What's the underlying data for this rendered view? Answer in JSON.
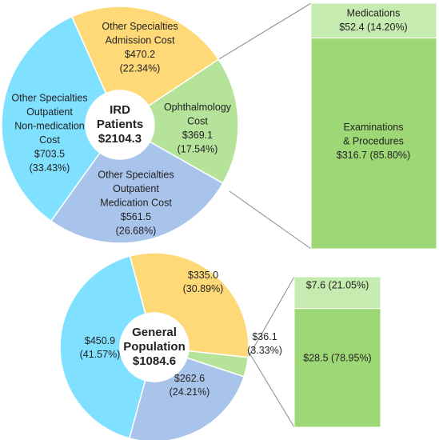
{
  "chart_data": [
    {
      "type": "pie",
      "center": {
        "line1": "IRD",
        "line2": "Patients",
        "total": "$2104.3"
      },
      "slices": [
        {
          "name": "Other Specialties Admission Cost",
          "value": 470.2,
          "percent": 22.34,
          "color": "#FFD978",
          "label_lines": [
            "Other Specialties",
            "Admission Cost",
            "$470.2",
            "(22.34%)"
          ]
        },
        {
          "name": "Ophthalmology Cost",
          "value": 369.1,
          "percent": 17.54,
          "color": "#B6E39A",
          "label_lines": [
            "Ophthalmology",
            "Cost",
            "$369.1",
            "(17.54%)"
          ]
        },
        {
          "name": "Other Specialties Outpatient Medication Cost",
          "value": 561.5,
          "percent": 26.68,
          "color": "#A9C4EB",
          "label_lines": [
            "Other Specialties",
            "Outpatient",
            "Medication Cost",
            "$561.5",
            "(26.68%)"
          ]
        },
        {
          "name": "Other Specialties Outpatient Non-medication Cost",
          "value": 703.5,
          "percent": 33.43,
          "color": "#80E0FF",
          "label_lines": [
            "Other Specialties",
            "Outpatient",
            "Non-medication",
            "Cost",
            "$703.5",
            "(33.43%)"
          ]
        }
      ],
      "breakdown": {
        "of": "Ophthalmology Cost",
        "segments": [
          {
            "name": "Medications",
            "value": 52.4,
            "percent": 14.2,
            "color": "#C5EBB0",
            "label_lines": [
              "Medications",
              "$52.4 (14.20%)"
            ]
          },
          {
            "name": "Examinations & Procedures",
            "value": 316.7,
            "percent": 85.8,
            "color": "#9ED876",
            "label_lines": [
              "Examinations",
              "& Procedures",
              "$316.7 (85.80%)"
            ]
          }
        ]
      }
    },
    {
      "type": "pie",
      "center": {
        "line1": "General",
        "line2": "Population",
        "total": "$1084.6"
      },
      "slices": [
        {
          "name": "Other Specialties Admission Cost",
          "value": 335.0,
          "percent": 30.89,
          "color": "#FFD978",
          "label_lines": [
            "$335.0",
            "(30.89%)"
          ]
        },
        {
          "name": "Ophthalmology Cost",
          "value": 36.1,
          "percent": 3.33,
          "color": "#B6E39A",
          "label_lines": [
            "$36.1",
            "(3.33%)"
          ]
        },
        {
          "name": "Other Specialties Outpatient Medication Cost",
          "value": 262.6,
          "percent": 24.21,
          "color": "#A9C4EB",
          "label_lines": [
            "$262.6",
            "(24.21%)"
          ]
        },
        {
          "name": "Other Specialties Outpatient Non-medication Cost",
          "value": 450.9,
          "percent": 41.57,
          "color": "#80E0FF",
          "label_lines": [
            "$450.9",
            "(41.57%)"
          ]
        }
      ],
      "breakdown": {
        "of": "Ophthalmology Cost",
        "segments": [
          {
            "name": "Medications",
            "value": 7.6,
            "percent": 21.05,
            "color": "#C5EBB0",
            "label_lines": [
              "$7.6 (21.05%)"
            ]
          },
          {
            "name": "Examinations & Procedures",
            "value": 28.5,
            "percent": 78.95,
            "color": "#9ED876",
            "label_lines": [
              "$28.5 (78.95%)"
            ]
          }
        ]
      }
    }
  ]
}
